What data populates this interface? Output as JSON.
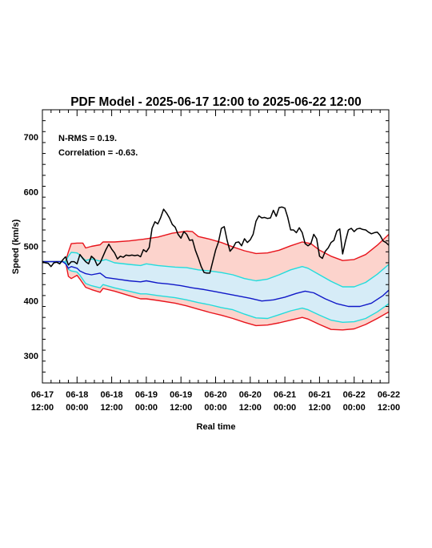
{
  "chart_data": {
    "type": "line",
    "title": "PDF Model - 2025-06-17 12:00 to 2025-06-22 12:00",
    "xlabel": "Real time",
    "ylabel": "Speed (km/s)",
    "annotations": [
      "N-RMS = 0.19.",
      "Correlation = -0.63."
    ],
    "xlim": [
      0,
      120
    ],
    "ylim": [
      250,
      750
    ],
    "y_ticks": [
      300,
      400,
      500,
      600,
      700
    ],
    "x_ticks": [
      {
        "x": 0,
        "line1": "06-17",
        "line2": "12:00"
      },
      {
        "x": 12,
        "line1": "06-18",
        "line2": "00:00"
      },
      {
        "x": 24,
        "line1": "06-18",
        "line2": "12:00"
      },
      {
        "x": 36,
        "line1": "06-19",
        "line2": "00:00"
      },
      {
        "x": 48,
        "line1": "06-19",
        "line2": "12:00"
      },
      {
        "x": 60,
        "line1": "06-20",
        "line2": "00:00"
      },
      {
        "x": 72,
        "line1": "06-20",
        "line2": "12:00"
      },
      {
        "x": 84,
        "line1": "06-21",
        "line2": "00:00"
      },
      {
        "x": 96,
        "line1": "06-21",
        "line2": "12:00"
      },
      {
        "x": 108,
        "line1": "06-22",
        "line2": "00:00"
      },
      {
        "x": 120,
        "line1": "06-22",
        "line2": "12:00"
      }
    ],
    "colors": {
      "outer_band_fill": "#fcd3cc",
      "inner_band_fill": "#d6ecf7",
      "outer_band_line": "#e8141c",
      "inner_band_line": "#22dcdc",
      "median_line": "#1018c8",
      "observed_line": "#000000"
    },
    "series": [
      {
        "role": "upper_outer",
        "values": [
          [
            0,
            472
          ],
          [
            6,
            472
          ],
          [
            8,
            472
          ],
          [
            9,
            490
          ],
          [
            10,
            505
          ],
          [
            12,
            506
          ],
          [
            14,
            506
          ],
          [
            15,
            497
          ],
          [
            17,
            500
          ],
          [
            20,
            503
          ],
          [
            21,
            508
          ],
          [
            25,
            508
          ],
          [
            30,
            510
          ],
          [
            35,
            513
          ],
          [
            40,
            517
          ],
          [
            45,
            524
          ],
          [
            50,
            528
          ],
          [
            52,
            527
          ],
          [
            54,
            518
          ],
          [
            58,
            513
          ],
          [
            62,
            507
          ],
          [
            66,
            499
          ],
          [
            70,
            492
          ],
          [
            74,
            487
          ],
          [
            78,
            488
          ],
          [
            82,
            493
          ],
          [
            86,
            501
          ],
          [
            90,
            508
          ],
          [
            93,
            505
          ],
          [
            96,
            493
          ],
          [
            100,
            482
          ],
          [
            104,
            474
          ],
          [
            108,
            476
          ],
          [
            112,
            485
          ],
          [
            116,
            502
          ],
          [
            120,
            522
          ]
        ]
      },
      {
        "role": "upper_inner",
        "values": [
          [
            0,
            472
          ],
          [
            6,
            472
          ],
          [
            8,
            472
          ],
          [
            9,
            482
          ],
          [
            10,
            489
          ],
          [
            12,
            488
          ],
          [
            13,
            484
          ],
          [
            15,
            474
          ],
          [
            17,
            477
          ],
          [
            20,
            473
          ],
          [
            22,
            476
          ],
          [
            25,
            470
          ],
          [
            30,
            467
          ],
          [
            34,
            465
          ],
          [
            36,
            468
          ],
          [
            40,
            465
          ],
          [
            46,
            462
          ],
          [
            50,
            461
          ],
          [
            54,
            457
          ],
          [
            58,
            455
          ],
          [
            62,
            452
          ],
          [
            66,
            448
          ],
          [
            70,
            441
          ],
          [
            74,
            437
          ],
          [
            78,
            440
          ],
          [
            82,
            448
          ],
          [
            86,
            457
          ],
          [
            90,
            463
          ],
          [
            92,
            460
          ],
          [
            96,
            448
          ],
          [
            100,
            436
          ],
          [
            104,
            426
          ],
          [
            108,
            426
          ],
          [
            112,
            434
          ],
          [
            116,
            449
          ],
          [
            120,
            467
          ]
        ]
      },
      {
        "role": "median",
        "values": [
          [
            0,
            472
          ],
          [
            4,
            472
          ],
          [
            7,
            472
          ],
          [
            8,
            468
          ],
          [
            9,
            460
          ],
          [
            10,
            463
          ],
          [
            12,
            460
          ],
          [
            13,
            455
          ],
          [
            15,
            450
          ],
          [
            17,
            448
          ],
          [
            20,
            451
          ],
          [
            22,
            443
          ],
          [
            26,
            440
          ],
          [
            30,
            437
          ],
          [
            34,
            435
          ],
          [
            36,
            437
          ],
          [
            40,
            433
          ],
          [
            44,
            431
          ],
          [
            48,
            428
          ],
          [
            52,
            424
          ],
          [
            56,
            421
          ],
          [
            60,
            417
          ],
          [
            64,
            413
          ],
          [
            68,
            409
          ],
          [
            72,
            405
          ],
          [
            76,
            400
          ],
          [
            80,
            402
          ],
          [
            84,
            407
          ],
          [
            88,
            414
          ],
          [
            91,
            418
          ],
          [
            94,
            415
          ],
          [
            98,
            404
          ],
          [
            102,
            395
          ],
          [
            106,
            390
          ],
          [
            110,
            390
          ],
          [
            114,
            396
          ],
          [
            118,
            410
          ],
          [
            120,
            420
          ]
        ]
      },
      {
        "role": "lower_inner",
        "values": [
          [
            0,
            472
          ],
          [
            6,
            472
          ],
          [
            8,
            472
          ],
          [
            9,
            458
          ],
          [
            10,
            455
          ],
          [
            12,
            453
          ],
          [
            13,
            447
          ],
          [
            15,
            432
          ],
          [
            17,
            428
          ],
          [
            20,
            424
          ],
          [
            21,
            430
          ],
          [
            25,
            424
          ],
          [
            30,
            418
          ],
          [
            34,
            413
          ],
          [
            36,
            413
          ],
          [
            40,
            410
          ],
          [
            46,
            406
          ],
          [
            50,
            402
          ],
          [
            54,
            397
          ],
          [
            58,
            393
          ],
          [
            62,
            388
          ],
          [
            66,
            384
          ],
          [
            70,
            376
          ],
          [
            74,
            369
          ],
          [
            78,
            368
          ],
          [
            82,
            375
          ],
          [
            86,
            382
          ],
          [
            90,
            387
          ],
          [
            92,
            384
          ],
          [
            96,
            374
          ],
          [
            100,
            365
          ],
          [
            104,
            361
          ],
          [
            108,
            362
          ],
          [
            112,
            368
          ],
          [
            116,
            380
          ],
          [
            120,
            395
          ]
        ]
      },
      {
        "role": "lower_outer",
        "values": [
          [
            0,
            472
          ],
          [
            6,
            472
          ],
          [
            8,
            472
          ],
          [
            9,
            445
          ],
          [
            10,
            441
          ],
          [
            12,
            447
          ],
          [
            13,
            440
          ],
          [
            15,
            425
          ],
          [
            17,
            421
          ],
          [
            20,
            416
          ],
          [
            21,
            423
          ],
          [
            25,
            418
          ],
          [
            30,
            410
          ],
          [
            34,
            404
          ],
          [
            36,
            404
          ],
          [
            40,
            401
          ],
          [
            46,
            396
          ],
          [
            50,
            391
          ],
          [
            54,
            385
          ],
          [
            58,
            379
          ],
          [
            62,
            374
          ],
          [
            66,
            368
          ],
          [
            70,
            361
          ],
          [
            74,
            355
          ],
          [
            78,
            356
          ],
          [
            82,
            360
          ],
          [
            86,
            365
          ],
          [
            90,
            370
          ],
          [
            92,
            367
          ],
          [
            96,
            357
          ],
          [
            100,
            348
          ],
          [
            104,
            347
          ],
          [
            108,
            349
          ],
          [
            112,
            357
          ],
          [
            116,
            368
          ],
          [
            120,
            380
          ]
        ]
      },
      {
        "role": "observed",
        "values": [
          [
            0,
            472
          ],
          [
            1,
            470
          ],
          [
            2,
            469
          ],
          [
            3,
            463
          ],
          [
            4,
            470
          ],
          [
            5,
            471
          ],
          [
            6,
            468
          ],
          [
            7,
            475
          ],
          [
            8,
            481
          ],
          [
            9,
            466
          ],
          [
            10,
            472
          ],
          [
            11,
            472
          ],
          [
            12,
            468
          ],
          [
            13,
            485
          ],
          [
            14,
            478
          ],
          [
            15,
            472
          ],
          [
            16,
            468
          ],
          [
            17,
            482
          ],
          [
            18,
            477
          ],
          [
            19,
            465
          ],
          [
            20,
            470
          ],
          [
            21,
            482
          ],
          [
            22,
            494
          ],
          [
            23,
            504
          ],
          [
            24,
            495
          ],
          [
            25,
            488
          ],
          [
            26,
            477
          ],
          [
            27,
            482
          ],
          [
            28,
            480
          ],
          [
            29,
            484
          ],
          [
            30,
            483
          ],
          [
            31,
            484
          ],
          [
            32,
            483
          ],
          [
            33,
            484
          ],
          [
            34,
            481
          ],
          [
            35,
            494
          ],
          [
            36,
            490
          ],
          [
            37,
            498
          ],
          [
            38,
            533
          ],
          [
            39,
            545
          ],
          [
            40,
            541
          ],
          [
            41,
            553
          ],
          [
            42,
            568
          ],
          [
            43,
            561
          ],
          [
            44,
            552
          ],
          [
            45,
            540
          ],
          [
            46,
            535
          ],
          [
            47,
            522
          ],
          [
            48,
            515
          ],
          [
            49,
            527
          ],
          [
            50,
            522
          ],
          [
            51,
            511
          ],
          [
            52,
            512
          ],
          [
            53,
            493
          ],
          [
            54,
            479
          ],
          [
            55,
            463
          ],
          [
            56,
            452
          ],
          [
            57,
            451
          ],
          [
            58,
            451
          ],
          [
            59,
            472
          ],
          [
            60,
            493
          ],
          [
            61,
            508
          ],
          [
            62,
            533
          ],
          [
            63,
            536
          ],
          [
            64,
            511
          ],
          [
            65,
            491
          ],
          [
            66,
            497
          ],
          [
            67,
            507
          ],
          [
            68,
            508
          ],
          [
            69,
            501
          ],
          [
            70,
            514
          ],
          [
            71,
            507
          ],
          [
            72,
            512
          ],
          [
            73,
            522
          ],
          [
            74,
            546
          ],
          [
            75,
            556
          ],
          [
            76,
            552
          ],
          [
            77,
            553
          ],
          [
            78,
            551
          ],
          [
            79,
            552
          ],
          [
            80,
            566
          ],
          [
            81,
            555
          ],
          [
            82,
            571
          ],
          [
            83,
            572
          ],
          [
            84,
            570
          ],
          [
            85,
            553
          ],
          [
            86,
            530
          ],
          [
            87,
            530
          ],
          [
            88,
            525
          ],
          [
            89,
            534
          ],
          [
            90,
            525
          ],
          [
            91,
            505
          ],
          [
            92,
            501
          ],
          [
            93,
            505
          ],
          [
            94,
            522
          ],
          [
            95,
            514
          ],
          [
            96,
            482
          ],
          [
            97,
            478
          ],
          [
            98,
            491
          ],
          [
            99,
            497
          ],
          [
            100,
            507
          ],
          [
            101,
            511
          ],
          [
            102,
            528
          ],
          [
            103,
            532
          ],
          [
            104,
            486
          ],
          [
            105,
            510
          ],
          [
            106,
            530
          ],
          [
            107,
            533
          ],
          [
            108,
            527
          ],
          [
            109,
            532
          ],
          [
            110,
            533
          ],
          [
            111,
            531
          ],
          [
            112,
            530
          ],
          [
            113,
            526
          ],
          [
            114,
            523
          ],
          [
            115,
            525
          ],
          [
            116,
            526
          ],
          [
            117,
            520
          ],
          [
            118,
            510
          ],
          [
            119,
            507
          ],
          [
            120,
            502
          ]
        ]
      }
    ]
  }
}
